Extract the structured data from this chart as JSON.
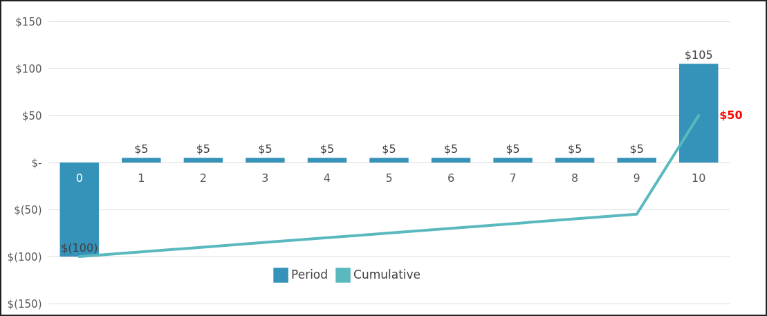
{
  "chart_data": {
    "type": "bar",
    "categories": [
      "0",
      "1",
      "2",
      "3",
      "4",
      "5",
      "6",
      "7",
      "8",
      "9",
      "10"
    ],
    "series": [
      {
        "name": "Period",
        "color": "#3592b9",
        "values": [
          -100,
          5,
          5,
          5,
          5,
          5,
          5,
          5,
          5,
          5,
          105
        ],
        "value_labels": [
          "$(100)",
          "$5",
          "$5",
          "$5",
          "$5",
          "$5",
          "$5",
          "$5",
          "$5",
          "$5",
          "$105"
        ]
      },
      {
        "name": "Cumulative",
        "type": "line",
        "color": "#5ab8bf",
        "values": [
          -100,
          -95,
          -90,
          -85,
          -80,
          -75,
          -70,
          -65,
          -60,
          -55,
          50
        ],
        "value_labels": [
          null,
          null,
          null,
          null,
          null,
          null,
          null,
          null,
          null,
          null,
          "$50"
        ]
      }
    ],
    "ylim": [
      -150,
      150
    ],
    "yticks": [
      {
        "value": -150,
        "label": "$(150)"
      },
      {
        "value": -100,
        "label": "$(100)"
      },
      {
        "value": -50,
        "label": "$(50)"
      },
      {
        "value": 0,
        "label": "$-"
      },
      {
        "value": 50,
        "label": "$50"
      },
      {
        "value": 100,
        "label": "$100"
      },
      {
        "value": 150,
        "label": "$150"
      }
    ],
    "grid": "y",
    "legend": "bottom"
  }
}
